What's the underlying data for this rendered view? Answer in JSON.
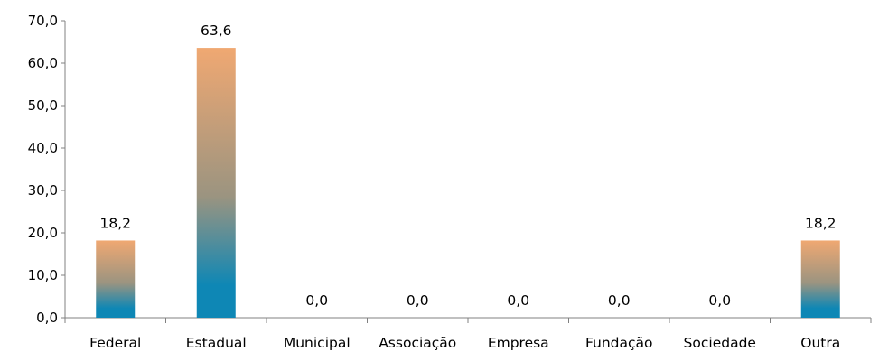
{
  "chart_data": {
    "type": "bar",
    "categories": [
      "Federal",
      "Estadual",
      "Municipal",
      "Associação",
      "Empresa",
      "Fundação",
      "Sociedade",
      "Outra"
    ],
    "values": [
      18.2,
      63.6,
      0.0,
      0.0,
      0.0,
      0.0,
      0.0,
      18.2
    ],
    "value_labels": [
      "18,2",
      "63,6",
      "0,0",
      "0,0",
      "0,0",
      "0,0",
      "0,0",
      "18,2"
    ],
    "y_ticks": [
      "0,0",
      "10,0",
      "20,0",
      "30,0",
      "40,0",
      "50,0",
      "60,0",
      "70,0"
    ],
    "ylim": [
      0,
      70
    ],
    "grid": false,
    "legend": "none",
    "colors": {
      "bar_top": "#F0A872",
      "bar_mid": "#9B9480",
      "bar_bottom": "#0E87B5",
      "axis": "#808080"
    }
  }
}
